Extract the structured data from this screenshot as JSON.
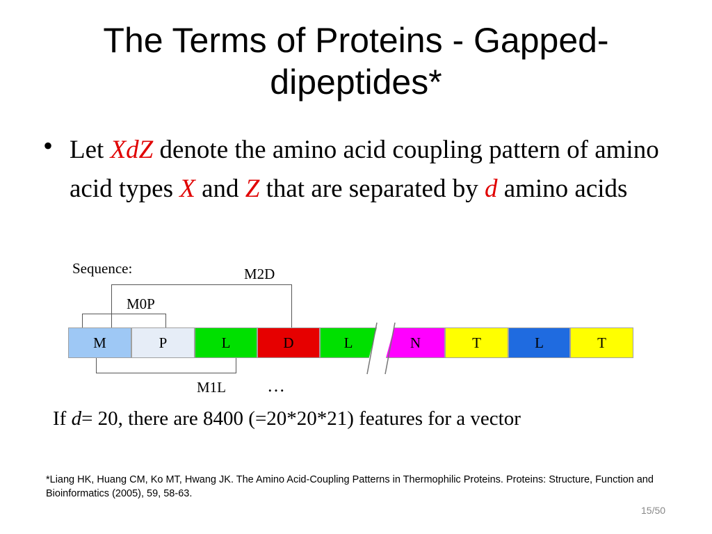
{
  "slide": {
    "title": "The Terms of Proteins - Gapped-dipeptides*",
    "bullet": {
      "symbol": "•",
      "t1": "Let ",
      "e1": "XdZ",
      "t2": " denote the amino acid coupling pattern of amino acid types ",
      "e2": "X",
      "t3": " and ",
      "e3": "Z",
      "t4": " that are separated by ",
      "e4": "d",
      "t5": " amino acids"
    },
    "highlight_color": "#e00000"
  },
  "diagram": {
    "sequence_label": "Sequence:",
    "brackets": {
      "m2d": "M2D",
      "m0p": "M0P",
      "m1l": "M1L"
    },
    "residues": [
      {
        "letter": "M",
        "color": "#9ec8f5"
      },
      {
        "letter": "P",
        "color": "#e6edf7"
      },
      {
        "letter": "L",
        "color": "#00e000"
      },
      {
        "letter": "D",
        "color": "#e60000"
      },
      {
        "letter": "L",
        "color": "#00e000"
      },
      {
        "letter": "N",
        "color": "#ff00ff"
      },
      {
        "letter": "T",
        "color": "#ffff00"
      },
      {
        "letter": "L",
        "color": "#1f6be0"
      },
      {
        "letter": "T",
        "color": "#ffff00"
      }
    ],
    "ellipsis": "…"
  },
  "note": {
    "prefix": "If ",
    "var": "d",
    "rest": "= 20, there are 8400 (=20*20*21) features for a vector"
  },
  "reference": "*Liang HK, Huang CM, Ko MT, Hwang JK. The Amino Acid-Coupling Patterns in Thermophilic Proteins. Proteins: Structure, Function and Bioinformatics (2005), 59, 58-63.",
  "page_number": "15/50"
}
